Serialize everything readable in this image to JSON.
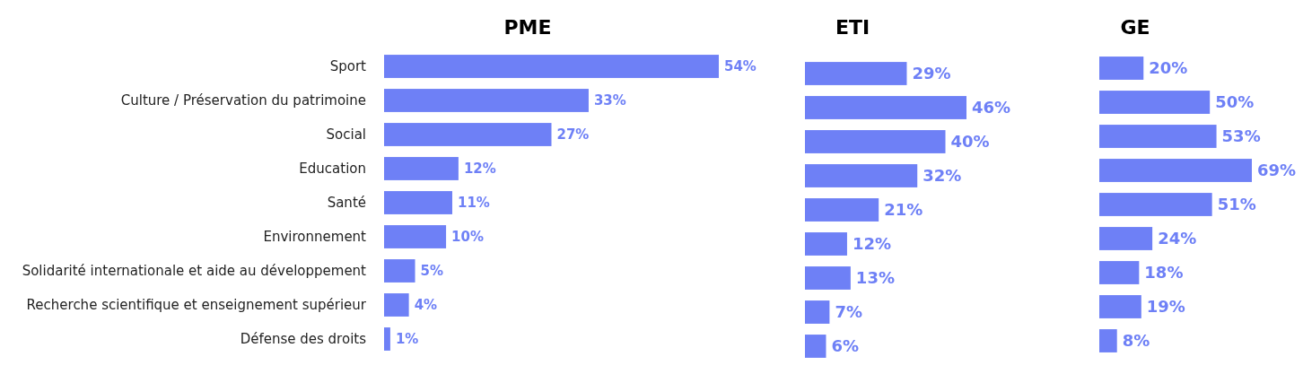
{
  "chart_data": [
    {
      "type": "bar",
      "orientation": "horizontal",
      "title": "PME",
      "categories": [
        "Sport",
        "Culture / Préservation du patrimoine",
        "Social",
        "Education",
        "Santé",
        "Environnement",
        "Solidarité internationale et aide au développement",
        "Recherche scientifique et enseignement supérieur",
        "Défense des droits"
      ],
      "values": [
        54,
        33,
        27,
        12,
        11,
        10,
        5,
        4,
        1
      ],
      "value_labels": [
        "54%",
        "33%",
        "27%",
        "12%",
        "11%",
        "10%",
        "5%",
        "4%",
        "1%"
      ],
      "color": "#6e80f6"
    },
    {
      "type": "bar",
      "orientation": "horizontal",
      "title": "ETI",
      "values": [
        29,
        46,
        40,
        32,
        21,
        12,
        13,
        7,
        6
      ],
      "value_labels": [
        "29%",
        "46%",
        "40%",
        "32%",
        "21%",
        "12%",
        "13%",
        "7%",
        "6%"
      ],
      "color": "#6e80f6"
    },
    {
      "type": "bar",
      "orientation": "horizontal",
      "title": "GE",
      "values": [
        20,
        50,
        53,
        69,
        51,
        24,
        18,
        19,
        8
      ],
      "value_labels": [
        "20%",
        "50%",
        "53%",
        "69%",
        "51%",
        "24%",
        "18%",
        "19%",
        "8%"
      ],
      "color": "#6e80f6"
    }
  ]
}
